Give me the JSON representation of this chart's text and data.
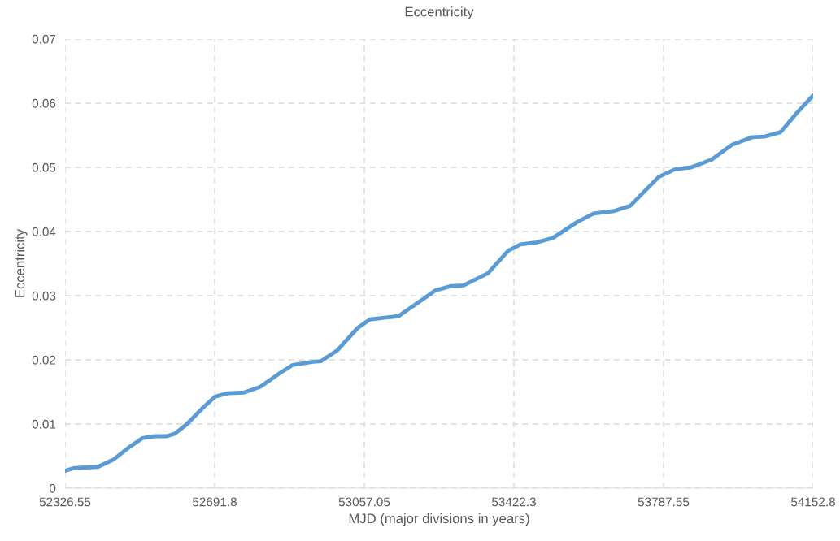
{
  "chart_data": {
    "type": "line",
    "title": "Eccentricity",
    "xlabel": "MJD (major divisions in years)",
    "ylabel": "Eccentricity",
    "xlim": [
      52326.55,
      54152.8
    ],
    "xticks": [
      52326.55,
      52691.8,
      53057.05,
      53422.3,
      53787.55,
      54152.8
    ],
    "ylim": [
      0,
      0.07
    ],
    "yticks": [
      0,
      0.01,
      0.02,
      0.03,
      0.04,
      0.05,
      0.06,
      0.07
    ],
    "grid": true,
    "marker": "none",
    "line_style": "solid",
    "series": [
      {
        "color": "#5b9bd5",
        "x": [
          52326.55,
          52346.4,
          52366.3,
          52406.0,
          52445.7,
          52485.4,
          52515.1,
          52544.9,
          52574.7,
          52594.5,
          52624.3,
          52664.0,
          52693.8,
          52723.5,
          52763.2,
          52802.9,
          52852.6,
          52882.3,
          52931.9,
          52951.8,
          52991.5,
          53041.2,
          53070.9,
          53110.6,
          53140.4,
          53190.0,
          53229.7,
          53269.4,
          53299.2,
          53358.8,
          53408.4,
          53438.2,
          53477.9,
          53517.6,
          53577.2,
          53616.9,
          53666.6,
          53706.3,
          53775.6,
          53815.4,
          53855.1,
          53904.7,
          53954.3,
          54004.0,
          54033.8,
          54073.5,
          54113.2,
          54152.8
        ],
        "values": [
          0.0027,
          0.0031,
          0.0032,
          0.0033,
          0.0045,
          0.0065,
          0.0078,
          0.0081,
          0.0081,
          0.0085,
          0.01,
          0.0126,
          0.0143,
          0.0148,
          0.0149,
          0.0158,
          0.018,
          0.0192,
          0.0197,
          0.0198,
          0.0215,
          0.025,
          0.0263,
          0.0266,
          0.0268,
          0.029,
          0.0308,
          0.0315,
          0.0316,
          0.0335,
          0.037,
          0.038,
          0.0383,
          0.039,
          0.0415,
          0.0428,
          0.0432,
          0.044,
          0.0485,
          0.0497,
          0.05,
          0.0512,
          0.0535,
          0.0547,
          0.0548,
          0.0555,
          0.0585,
          0.0612
        ]
      }
    ]
  }
}
